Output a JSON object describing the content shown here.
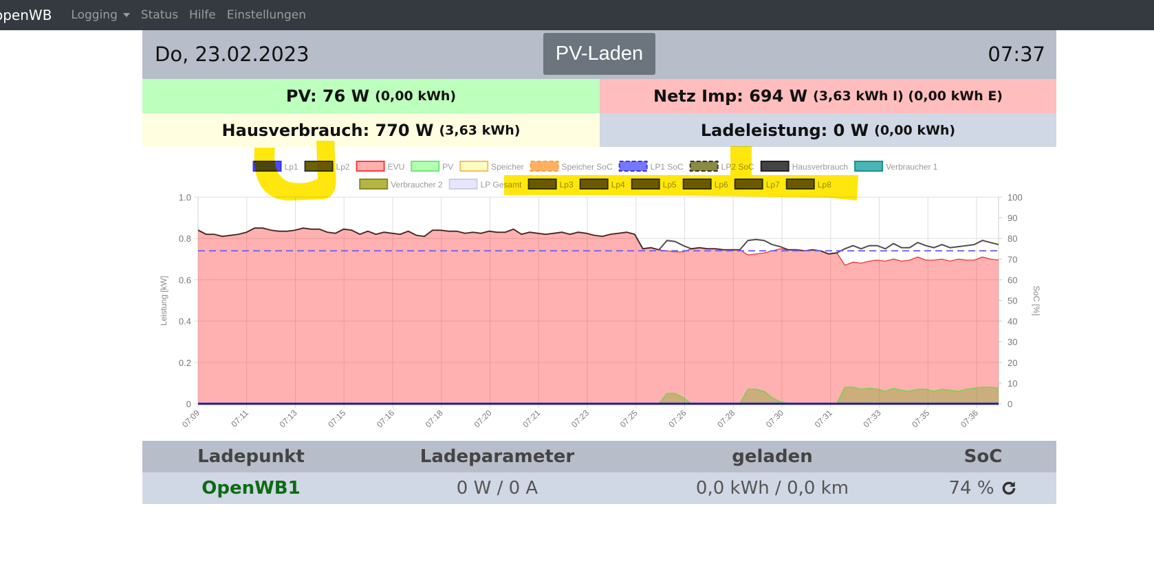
{
  "nav": {
    "brand": "openWB",
    "items": [
      "Logging",
      "Status",
      "Hilfe",
      "Einstellungen"
    ]
  },
  "header": {
    "date": "Do, 23.02.2023",
    "mode": "PV-Laden",
    "time": "07:37"
  },
  "summary": {
    "pv": {
      "label": "PV: 76 W",
      "detail": "(0,00 kWh)"
    },
    "netz": {
      "label": "Netz Imp: 694 W",
      "detail": "(3,63 kWh I) (0,00 kWh E)"
    },
    "haus": {
      "label": "Hausverbrauch: 770 W",
      "detail": "(3,63 kWh)"
    },
    "lade": {
      "label": "Ladeleistung: 0 W",
      "detail": "(0,00 kWh)"
    }
  },
  "colors": {
    "pv_bg": "#bdffbd",
    "netz_bg": "#ffbdbd",
    "haus_bg": "#fffee0",
    "lade_bg": "#d0d7e5",
    "header_bg": "#b7bdc9"
  },
  "chart_data": {
    "type": "line",
    "ylabel": "Leistung [kW]",
    "y2label": "SoC [%]",
    "ylim": [
      0,
      1.0
    ],
    "y2lim": [
      0,
      100
    ],
    "yticks": [
      "1.0",
      "0.8",
      "0.6",
      "0.4",
      "0.2",
      "0"
    ],
    "y2ticks": [
      "100",
      "90",
      "80",
      "70",
      "60",
      "50",
      "40",
      "30",
      "20",
      "10",
      "0"
    ],
    "xticks": [
      "07:09",
      "07:11",
      "07:13",
      "07:15",
      "07:16",
      "07:18",
      "07:20",
      "07:21",
      "07:23",
      "07:25",
      "07:26",
      "07:28",
      "07:30",
      "07:31",
      "07:33",
      "07:35",
      "07:36"
    ],
    "legend": [
      {
        "label": "Lp1",
        "color": "#3333ff",
        "fill": "rgba(0,0,255,0.7)"
      },
      {
        "label": "Lp2",
        "color": "#333",
        "fill": "#6b6200"
      },
      {
        "label": "EVU",
        "color": "#ff3b3b",
        "fill": "#ffb0b0"
      },
      {
        "label": "PV",
        "color": "#6fe56f",
        "fill": "#b4ffb4"
      },
      {
        "label": "Speicher",
        "color": "#f0c060",
        "fill": "#fdfbc0"
      },
      {
        "label": "Speicher SoC",
        "color": "#ffa040",
        "fill": "#ffb060",
        "dash": true
      },
      {
        "label": "LP1 SoC",
        "color": "#3333ff",
        "fill": "#7777ff",
        "dash": true
      },
      {
        "label": "LP2 SoC",
        "color": "#333",
        "fill": "#8a8a40",
        "dash": true
      },
      {
        "label": "Hausverbrauch",
        "color": "#222",
        "fill": "#444"
      },
      {
        "label": "Verbraucher 1",
        "color": "#1a9090",
        "fill": "#4ab5b5"
      },
      {
        "label": "Verbraucher 2",
        "color": "#8a8a20",
        "fill": "#b5b545"
      },
      {
        "label": "LP Gesamt",
        "color": "#ccccf0",
        "fill": "#e6e6fa"
      },
      {
        "label": "Lp3",
        "color": "#333",
        "fill": "#6b6200"
      },
      {
        "label": "Lp4",
        "color": "#333",
        "fill": "#6b6200"
      },
      {
        "label": "Lp5",
        "color": "#333",
        "fill": "#6b6200"
      },
      {
        "label": "Lp6",
        "color": "#333",
        "fill": "#6b6200"
      },
      {
        "label": "Lp7",
        "color": "#333",
        "fill": "#6b6200"
      },
      {
        "label": "Lp8",
        "color": "#333",
        "fill": "#6b6200"
      }
    ],
    "series": {
      "evu": [
        0.84,
        0.82,
        0.82,
        0.81,
        0.815,
        0.82,
        0.83,
        0.85,
        0.85,
        0.84,
        0.835,
        0.835,
        0.84,
        0.85,
        0.845,
        0.845,
        0.83,
        0.825,
        0.845,
        0.84,
        0.82,
        0.835,
        0.82,
        0.83,
        0.825,
        0.82,
        0.835,
        0.815,
        0.81,
        0.84,
        0.84,
        0.835,
        0.835,
        0.825,
        0.83,
        0.825,
        0.835,
        0.83,
        0.83,
        0.845,
        0.82,
        0.83,
        0.825,
        0.82,
        0.825,
        0.83,
        0.82,
        0.83,
        0.825,
        0.815,
        0.81,
        0.82,
        0.825,
        0.83,
        0.82,
        0.75,
        0.755,
        0.745,
        0.74,
        0.735,
        0.735,
        0.75,
        0.755,
        0.75,
        0.75,
        0.745,
        0.745,
        0.745,
        0.72,
        0.725,
        0.73,
        0.74,
        0.75,
        0.745,
        0.745,
        0.74,
        0.745,
        0.74,
        0.725,
        0.73,
        0.67,
        0.685,
        0.68,
        0.69,
        0.695,
        0.69,
        0.7,
        0.69,
        0.695,
        0.71,
        0.695,
        0.695,
        0.7,
        0.69,
        0.7,
        0.695,
        0.695,
        0.71,
        0.7,
        0.695
      ],
      "pv": [
        0,
        0,
        0,
        0,
        0,
        0,
        0,
        0,
        0,
        0,
        0,
        0,
        0,
        0,
        0,
        0,
        0,
        0,
        0,
        0,
        0,
        0,
        0,
        0,
        0,
        0,
        0,
        0,
        0,
        0,
        0,
        0,
        0,
        0,
        0,
        0,
        0,
        0,
        0,
        0,
        0,
        0,
        0,
        0,
        0,
        0,
        0,
        0,
        0,
        0,
        0,
        0,
        0,
        0,
        0,
        0,
        0,
        0,
        0.05,
        0.05,
        0.03,
        0,
        0,
        0,
        0,
        0,
        0,
        0,
        0.07,
        0.07,
        0.06,
        0.03,
        0.01,
        0,
        0,
        0,
        0,
        0,
        0,
        0,
        0.08,
        0.08,
        0.07,
        0.075,
        0.07,
        0.06,
        0.075,
        0.065,
        0.06,
        0.07,
        0.07,
        0.06,
        0.07,
        0.065,
        0.06,
        0.07,
        0.075,
        0.08,
        0.08,
        0.075
      ],
      "lp1": 0,
      "lp1_soc": 74
    }
  },
  "table": {
    "headers": [
      "Ladepunkt",
      "Ladeparameter",
      "geladen",
      "SoC"
    ],
    "row": {
      "name": "OpenWB1",
      "param": "0 W / 0 A",
      "charged": "0,0 kWh / 0,0 km",
      "soc": "74 %"
    }
  }
}
